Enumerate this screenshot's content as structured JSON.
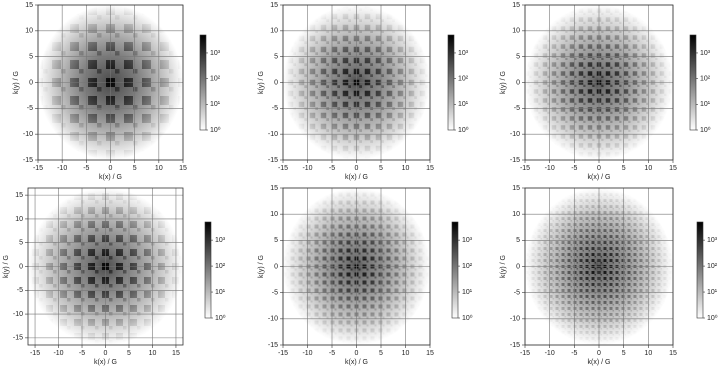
{
  "chart_data": [
    {
      "type": "heatmap",
      "xlabel": "k(x) / G",
      "ylabel": "k(y) / G",
      "xlim": [
        -15,
        15
      ],
      "ylim": [
        -15,
        15
      ],
      "xticks": [
        -15,
        -10,
        -5,
        0,
        5,
        10,
        15
      ],
      "yticks": [
        -15,
        -10,
        -5,
        0,
        5,
        10,
        15
      ],
      "grid": true,
      "cmap": "Greys",
      "colorbar": {
        "log": true,
        "lim": [
          1,
          5000
        ],
        "ticks": [
          {
            "value": 1,
            "label": "10⁰"
          },
          {
            "value": 10,
            "label": "10¹"
          },
          {
            "value": 100,
            "label": "10²"
          },
          {
            "value": 1000,
            "label": "10³"
          }
        ]
      }
    },
    {
      "type": "heatmap",
      "xlabel": "k(x) / G",
      "ylabel": "k(y) / G",
      "xlim": [
        -15,
        15
      ],
      "ylim": [
        -15,
        15
      ],
      "xticks": [
        -15,
        -10,
        -5,
        0,
        5,
        10,
        15
      ],
      "yticks": [
        -15,
        -10,
        -5,
        0,
        5,
        10,
        15
      ],
      "grid": true,
      "cmap": "Greys",
      "colorbar": {
        "log": true,
        "lim": [
          1,
          5000
        ],
        "ticks": [
          {
            "value": 1,
            "label": "10⁰"
          },
          {
            "value": 10,
            "label": "10¹"
          },
          {
            "value": 100,
            "label": "10²"
          },
          {
            "value": 1000,
            "label": "10³"
          }
        ]
      }
    },
    {
      "type": "heatmap",
      "xlabel": "k(x) / G",
      "ylabel": "k(y) / G",
      "xlim": [
        -15,
        15
      ],
      "ylim": [
        -15,
        15
      ],
      "xticks": [
        -15,
        -10,
        -5,
        0,
        5,
        10,
        15
      ],
      "yticks": [
        -15,
        -10,
        -5,
        0,
        5,
        10,
        15
      ],
      "grid": true,
      "cmap": "Greys",
      "colorbar": {
        "log": true,
        "lim": [
          1,
          5000
        ],
        "ticks": [
          {
            "value": 1,
            "label": "10⁰"
          },
          {
            "value": 10,
            "label": "10¹"
          },
          {
            "value": 100,
            "label": "10²"
          },
          {
            "value": 1000,
            "label": "10³"
          }
        ]
      }
    },
    {
      "type": "heatmap",
      "xlabel": "k(x) / G",
      "ylabel": "k(y) / G",
      "xlim": [
        -16.5,
        16.5
      ],
      "ylim": [
        -16.5,
        16.5
      ],
      "xticks": [
        -15,
        -10,
        -5,
        0,
        5,
        10,
        15
      ],
      "yticks": [
        -15,
        -10,
        -5,
        0,
        5,
        10,
        15
      ],
      "grid": true,
      "cmap": "Greys",
      "colorbar": {
        "log": true,
        "lim": [
          1,
          5000
        ],
        "ticks": [
          {
            "value": 1,
            "label": "10⁰"
          },
          {
            "value": 10,
            "label": "10¹"
          },
          {
            "value": 100,
            "label": "10²"
          },
          {
            "value": 1000,
            "label": "10³"
          }
        ]
      }
    },
    {
      "type": "heatmap",
      "xlabel": "k(x) / G",
      "ylabel": "k(y) / G",
      "xlim": [
        -15,
        15
      ],
      "ylim": [
        -15,
        15
      ],
      "xticks": [
        -15,
        -10,
        -5,
        0,
        5,
        10,
        15
      ],
      "yticks": [
        -15,
        -10,
        -5,
        0,
        5,
        10,
        15
      ],
      "grid": true,
      "cmap": "Greys",
      "colorbar": {
        "log": true,
        "lim": [
          1,
          5000
        ],
        "ticks": [
          {
            "value": 1,
            "label": "10⁰"
          },
          {
            "value": 10,
            "label": "10¹"
          },
          {
            "value": 100,
            "label": "10²"
          },
          {
            "value": 1000,
            "label": "10³"
          }
        ]
      }
    },
    {
      "type": "heatmap",
      "xlabel": "k(x) / G",
      "ylabel": "k(y) / G",
      "xlim": [
        -15,
        15
      ],
      "ylim": [
        -15,
        15
      ],
      "xticks": [
        -15,
        -10,
        -5,
        0,
        5,
        10,
        15
      ],
      "yticks": [
        -15,
        -10,
        -5,
        0,
        5,
        10,
        15
      ],
      "grid": true,
      "cmap": "Greys",
      "colorbar": {
        "log": true,
        "lim": [
          1,
          5000
        ],
        "ticks": [
          {
            "value": 1,
            "label": "10⁰"
          },
          {
            "value": 10,
            "label": "10¹"
          },
          {
            "value": 100,
            "label": "10²"
          },
          {
            "value": 1000,
            "label": "10³"
          }
        ]
      }
    }
  ]
}
